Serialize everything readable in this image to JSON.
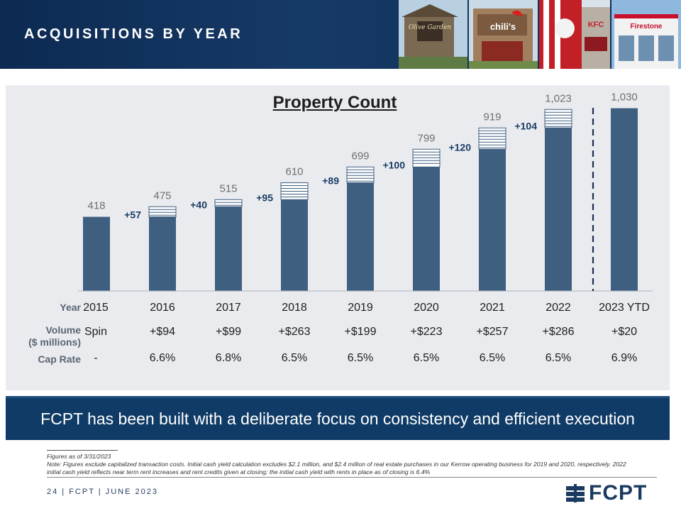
{
  "header": {
    "title": "ACQUISITIONS BY YEAR",
    "photos": [
      {
        "name": "olive-garden-photo",
        "sign": "Olive Garden"
      },
      {
        "name": "chilis-photo",
        "sign": "chili's"
      },
      {
        "name": "kfc-photo",
        "sign": "KFC"
      },
      {
        "name": "firestone-photo",
        "sign": "Firestone"
      }
    ]
  },
  "chart_data": {
    "type": "bar",
    "title": "Property Count",
    "categories": [
      "2015",
      "2016",
      "2017",
      "2018",
      "2019",
      "2020",
      "2021",
      "2022",
      "2023 YTD"
    ],
    "totals": [
      418,
      475,
      515,
      610,
      699,
      799,
      919,
      1023,
      1030
    ],
    "additions": [
      null,
      57,
      40,
      95,
      89,
      100,
      120,
      104,
      null
    ],
    "addition_labels": [
      "+57",
      "+40",
      "+95",
      "+89",
      "+100",
      "+120",
      "+104"
    ],
    "total_labels": [
      "418",
      "475",
      "515",
      "610",
      "699",
      "799",
      "919",
      "1,023",
      "1,030"
    ],
    "ylim": [
      0,
      1100
    ],
    "grid": false,
    "colors": {
      "bar": "#3e5f80",
      "stripe_fill": "#ffffff",
      "stripe_line": "#3e5f80",
      "addition_text": "#1a3c64",
      "total_text": "#707070"
    }
  },
  "table": {
    "row_labels": {
      "year": "Year",
      "volume_line1": "Volume",
      "volume_line2": "($ millions)",
      "cap_rate": "Cap Rate"
    },
    "years": [
      "2015",
      "2016",
      "2017",
      "2018",
      "2019",
      "2020",
      "2021",
      "2022",
      "2023 YTD"
    ],
    "volume": [
      "Spin",
      "+$94",
      "+$99",
      "+$263",
      "+$199",
      "+$223",
      "+$257",
      "+$286",
      "+$20"
    ],
    "cap_rate": [
      "-",
      "6.6%",
      "6.8%",
      "6.5%",
      "6.5%",
      "6.5%",
      "6.5%",
      "6.5%",
      "6.9%"
    ]
  },
  "banner": {
    "text": "FCPT has been built with a deliberate focus on consistency and efficient execution"
  },
  "notes": {
    "as_of": "Figures as of 3/31/2023",
    "note": "Note: Figures exclude capitalized transaction costs. Initial cash yield calculation excludes $2.1 million, and $2.4 million of real estate purchases in our Kerrow operating business for 2019 and 2020, respectively. 2022 initial cash yield reflects near term rent increases and rent credits given at closing; the initial cash yield with rents in place as of closing is 6.4%"
  },
  "footer": {
    "text": "24  |  FCPT  |  JUNE 2023"
  },
  "logo": {
    "text": "FCPT",
    "color": "#1b3a60"
  }
}
